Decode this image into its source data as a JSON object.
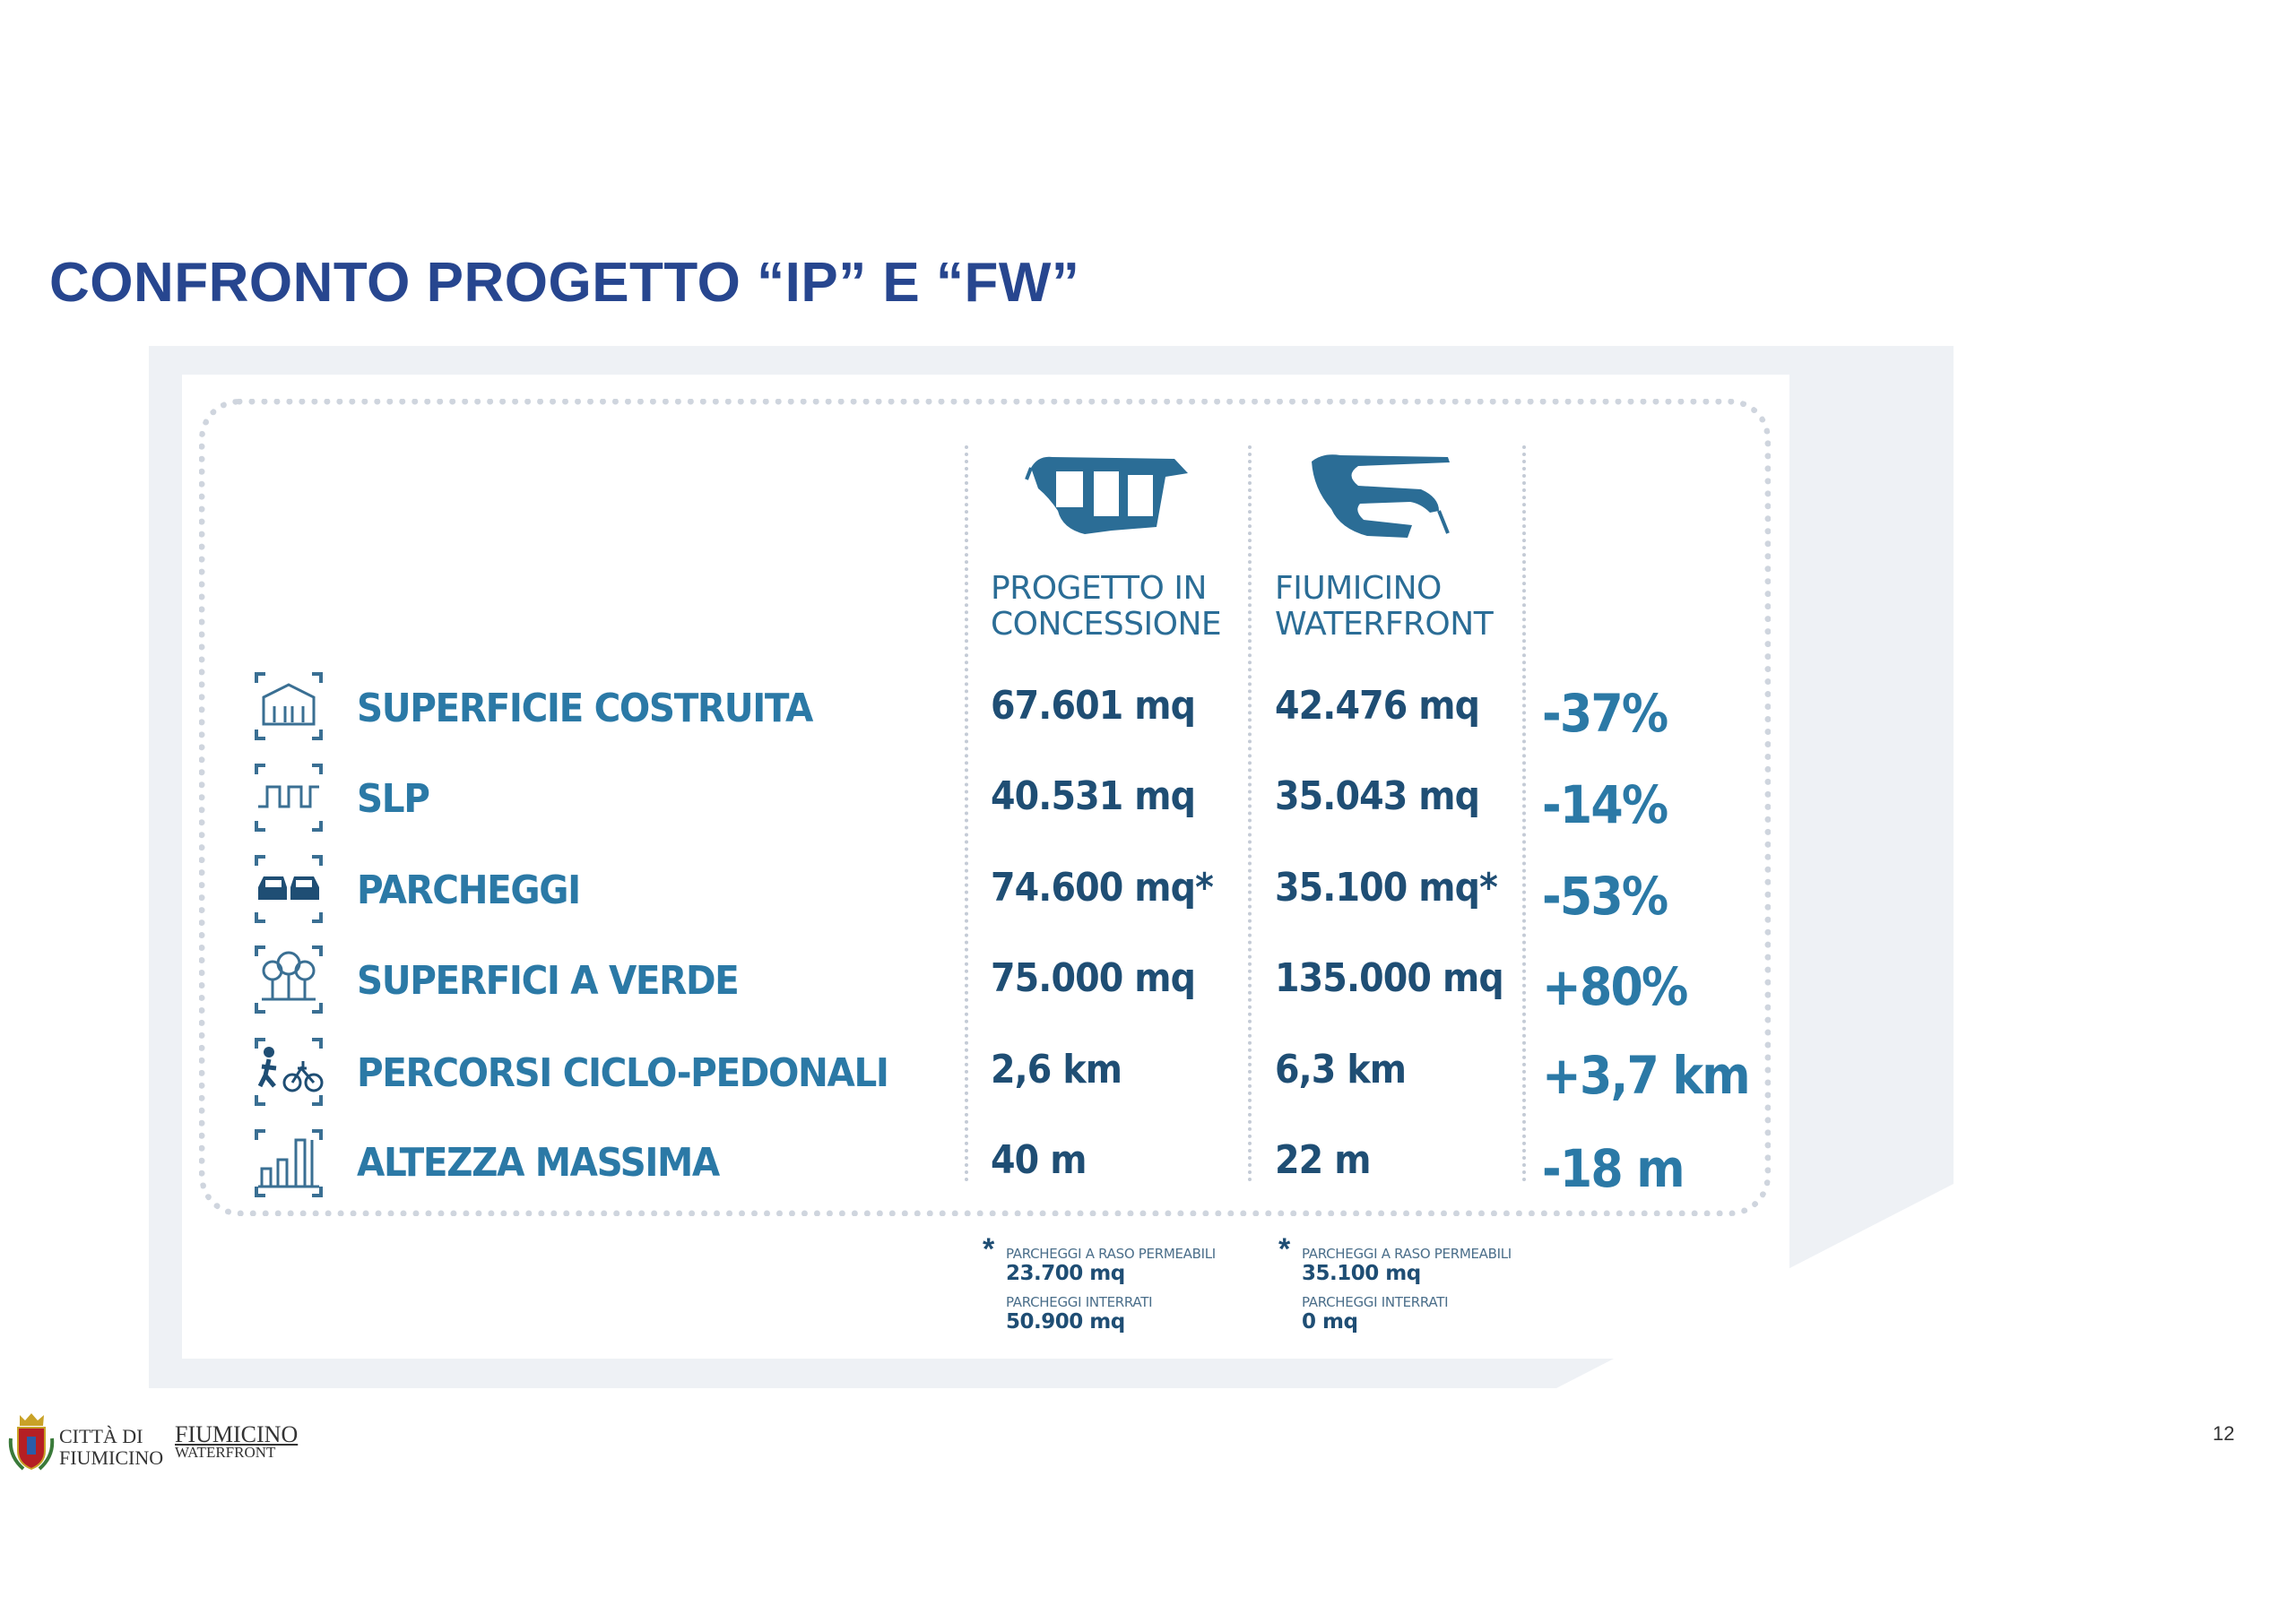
{
  "title": "CONFRONTO PROGETTO “IP” E “FW”",
  "columns": {
    "ip": {
      "line1": "PROGETTO IN",
      "line2": "CONCESSIONE"
    },
    "fw": {
      "line1": "FIUMICINO",
      "line2": "WATERFRONT"
    }
  },
  "rows": [
    {
      "icon": "building-icon",
      "label": "SUPERFICIE COSTRUITA",
      "ip": "67.601 mq",
      "fw": "42.476 mq",
      "delta": "-37%"
    },
    {
      "icon": "floor-area-icon",
      "label": "SLP",
      "ip": "40.531 mq",
      "fw": "35.043 mq",
      "delta": "-14%"
    },
    {
      "icon": "cars-icon",
      "label": "PARCHEGGI",
      "ip": "74.600 mq*",
      "fw": "35.100 mq*",
      "delta": "-53%"
    },
    {
      "icon": "trees-icon",
      "label": "SUPERFICI A VERDE",
      "ip": "75.000 mq",
      "fw": "135.000 mq",
      "delta": "+80%"
    },
    {
      "icon": "cyclist-pedestrian-icon",
      "label": "PERCORSI CICLO-PEDONALI",
      "ip": "2,6 km",
      "fw": "6,3 km",
      "delta": "+3,7 km"
    },
    {
      "icon": "height-icon",
      "label": "ALTEZZA MASSIMA",
      "ip": "40 m",
      "fw": "22 m",
      "delta": "-18 m"
    }
  ],
  "notes": {
    "star": "*",
    "ip": {
      "raso_label": "PARCHEGGI A RASO PERMEABILI",
      "raso_value": "23.700 mq",
      "interrati_label": "PARCHEGGI INTERRATI",
      "interrati_value": "50.900 mq"
    },
    "fw": {
      "raso_label": "PARCHEGGI A RASO PERMEABILI",
      "raso_value": "35.100 mq",
      "interrati_label": "PARCHEGGI INTERRATI",
      "interrati_value": "0 mq"
    }
  },
  "footer": {
    "city_line1": "CITTÀ DI",
    "city_line2": "FIUMICINO",
    "brand_line1": "FIUMICINO",
    "brand_line2": "WATERFRONT"
  },
  "page_number": "12",
  "colors": {
    "title": "#27468f",
    "label": "#2b79a6",
    "value": "#1f4e74",
    "background_shape": "#eef1f5"
  }
}
